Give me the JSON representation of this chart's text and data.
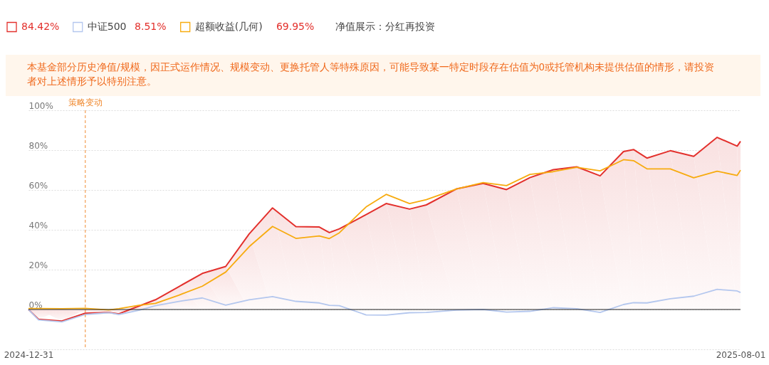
{
  "chart_data": {
    "type": "line",
    "x": [
      "2024-12-31",
      "2025-01-03",
      "2025-01-10",
      "2025-01-17",
      "2025-01-24",
      "2025-01-27",
      "2025-02-02",
      "2025-02-07",
      "2025-02-14",
      "2025-02-21",
      "2025-02-28",
      "2025-03-07",
      "2025-03-14",
      "2025-03-21",
      "2025-03-28",
      "2025-03-31",
      "2025-04-03",
      "2025-04-11",
      "2025-04-17",
      "2025-04-24",
      "2025-04-29",
      "2025-05-08",
      "2025-05-16",
      "2025-05-23",
      "2025-05-30",
      "2025-06-06",
      "2025-06-13",
      "2025-06-20",
      "2025-06-27",
      "2025-06-30",
      "2025-07-04",
      "2025-07-11",
      "2025-07-18",
      "2025-07-25",
      "2025-07-31",
      "2025-08-01"
    ],
    "series": [
      {
        "type": "area",
        "color": "#e3302c",
        "values": [
          0,
          -4.9,
          -5.8,
          -1.9,
          -1.4,
          -2.2,
          1.7,
          4.9,
          11.5,
          18.1,
          21.6,
          37.9,
          51.0,
          41.6,
          41.4,
          38.6,
          40.5,
          47.6,
          53.2,
          50.4,
          52.5,
          60.5,
          63.3,
          60.2,
          66.2,
          70.2,
          71.6,
          67.1,
          79.3,
          80.3,
          76.0,
          79.7,
          76.9,
          86.4,
          82.0,
          84.42
        ]
      },
      {
        "name": "中证500",
        "type": "line",
        "color": "#b4c7ee",
        "values": [
          0,
          -5.2,
          -6.2,
          -2.5,
          -1.6,
          -2.5,
          -0.4,
          1.9,
          4.1,
          5.8,
          2.2,
          4.9,
          6.5,
          4.1,
          3.3,
          2.1,
          1.9,
          -2.7,
          -2.8,
          -1.6,
          -1.5,
          -0.3,
          0,
          -1.3,
          -0.9,
          0.9,
          0.4,
          -1.5,
          2.5,
          3.4,
          3.3,
          5.4,
          6.7,
          10.1,
          9.3,
          8.51
        ]
      },
      {
        "name": "超额收益(几何)",
        "type": "line",
        "color": "#f7ab0f",
        "values": [
          0.5,
          0.5,
          0.4,
          0.6,
          -0.2,
          0.4,
          2.1,
          3.1,
          7.2,
          11.7,
          18.8,
          31.5,
          41.7,
          35.7,
          36.9,
          35.6,
          38.5,
          51.5,
          57.8,
          53.2,
          55.1,
          60.5,
          63.7,
          62.2,
          67.8,
          69.2,
          71.4,
          69.6,
          75.2,
          74.7,
          70.6,
          70.6,
          66.1,
          69.4,
          67.3,
          69.95
        ]
      }
    ],
    "ylim": [
      -20,
      100
    ],
    "yticks": [
      {
        "value": -20,
        "label": null
      },
      {
        "value": 0,
        "label": "0%"
      },
      {
        "value": 20,
        "label": "20%"
      },
      {
        "value": 40,
        "label": "40%"
      },
      {
        "value": 60,
        "label": "60%"
      },
      {
        "value": 80,
        "label": "80%"
      },
      {
        "value": 100,
        "label": "100%"
      }
    ],
    "xlim": [
      "2024-12-31",
      "2025-08-01"
    ],
    "xticks": [
      {
        "value": "2024-12-31",
        "label": "2024-12-31"
      },
      {
        "value": "2025-08-01",
        "label": "2025-08-01"
      }
    ],
    "ref_lines": [
      {
        "axis": "x",
        "value": "2025-01-17",
        "label": "策略变动",
        "color": "#f08a30",
        "line_style": "dashed"
      },
      {
        "axis": "y",
        "value": 0,
        "label": null,
        "color": "#222222",
        "line_style": "solid"
      }
    ],
    "grid": "y",
    "legend": "top left",
    "annotations": [
      "84.42%",
      "8.51%",
      "69.95%",
      "净值展示：分红再投资",
      "本基金部分历史净值/规模，因正式运作情况、规模变动、更换托管人等特殊原因，可能导致某一特定时段存在估值为0或托管机构未提供估值的情形，请投资者对上述情形予以特别注意。"
    ]
  }
}
